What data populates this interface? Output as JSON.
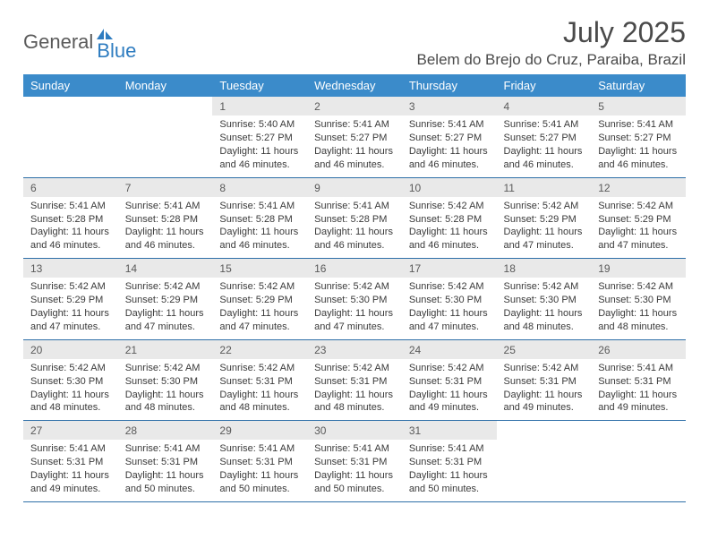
{
  "logo": {
    "general": "General",
    "blue": "Blue"
  },
  "title": {
    "month": "July 2025",
    "location": "Belem do Brejo do Cruz, Paraiba, Brazil"
  },
  "colors": {
    "headerBg": "#3b8bca",
    "daynumBg": "#e9e9e9",
    "border": "#2e6fa8"
  },
  "weekdays": [
    "Sunday",
    "Monday",
    "Tuesday",
    "Wednesday",
    "Thursday",
    "Friday",
    "Saturday"
  ],
  "weeks": [
    [
      null,
      null,
      {
        "d": "1",
        "sr": "Sunrise: 5:40 AM",
        "ss": "Sunset: 5:27 PM",
        "dl1": "Daylight: 11 hours",
        "dl2": "and 46 minutes."
      },
      {
        "d": "2",
        "sr": "Sunrise: 5:41 AM",
        "ss": "Sunset: 5:27 PM",
        "dl1": "Daylight: 11 hours",
        "dl2": "and 46 minutes."
      },
      {
        "d": "3",
        "sr": "Sunrise: 5:41 AM",
        "ss": "Sunset: 5:27 PM",
        "dl1": "Daylight: 11 hours",
        "dl2": "and 46 minutes."
      },
      {
        "d": "4",
        "sr": "Sunrise: 5:41 AM",
        "ss": "Sunset: 5:27 PM",
        "dl1": "Daylight: 11 hours",
        "dl2": "and 46 minutes."
      },
      {
        "d": "5",
        "sr": "Sunrise: 5:41 AM",
        "ss": "Sunset: 5:27 PM",
        "dl1": "Daylight: 11 hours",
        "dl2": "and 46 minutes."
      }
    ],
    [
      {
        "d": "6",
        "sr": "Sunrise: 5:41 AM",
        "ss": "Sunset: 5:28 PM",
        "dl1": "Daylight: 11 hours",
        "dl2": "and 46 minutes."
      },
      {
        "d": "7",
        "sr": "Sunrise: 5:41 AM",
        "ss": "Sunset: 5:28 PM",
        "dl1": "Daylight: 11 hours",
        "dl2": "and 46 minutes."
      },
      {
        "d": "8",
        "sr": "Sunrise: 5:41 AM",
        "ss": "Sunset: 5:28 PM",
        "dl1": "Daylight: 11 hours",
        "dl2": "and 46 minutes."
      },
      {
        "d": "9",
        "sr": "Sunrise: 5:41 AM",
        "ss": "Sunset: 5:28 PM",
        "dl1": "Daylight: 11 hours",
        "dl2": "and 46 minutes."
      },
      {
        "d": "10",
        "sr": "Sunrise: 5:42 AM",
        "ss": "Sunset: 5:28 PM",
        "dl1": "Daylight: 11 hours",
        "dl2": "and 46 minutes."
      },
      {
        "d": "11",
        "sr": "Sunrise: 5:42 AM",
        "ss": "Sunset: 5:29 PM",
        "dl1": "Daylight: 11 hours",
        "dl2": "and 47 minutes."
      },
      {
        "d": "12",
        "sr": "Sunrise: 5:42 AM",
        "ss": "Sunset: 5:29 PM",
        "dl1": "Daylight: 11 hours",
        "dl2": "and 47 minutes."
      }
    ],
    [
      {
        "d": "13",
        "sr": "Sunrise: 5:42 AM",
        "ss": "Sunset: 5:29 PM",
        "dl1": "Daylight: 11 hours",
        "dl2": "and 47 minutes."
      },
      {
        "d": "14",
        "sr": "Sunrise: 5:42 AM",
        "ss": "Sunset: 5:29 PM",
        "dl1": "Daylight: 11 hours",
        "dl2": "and 47 minutes."
      },
      {
        "d": "15",
        "sr": "Sunrise: 5:42 AM",
        "ss": "Sunset: 5:29 PM",
        "dl1": "Daylight: 11 hours",
        "dl2": "and 47 minutes."
      },
      {
        "d": "16",
        "sr": "Sunrise: 5:42 AM",
        "ss": "Sunset: 5:30 PM",
        "dl1": "Daylight: 11 hours",
        "dl2": "and 47 minutes."
      },
      {
        "d": "17",
        "sr": "Sunrise: 5:42 AM",
        "ss": "Sunset: 5:30 PM",
        "dl1": "Daylight: 11 hours",
        "dl2": "and 47 minutes."
      },
      {
        "d": "18",
        "sr": "Sunrise: 5:42 AM",
        "ss": "Sunset: 5:30 PM",
        "dl1": "Daylight: 11 hours",
        "dl2": "and 48 minutes."
      },
      {
        "d": "19",
        "sr": "Sunrise: 5:42 AM",
        "ss": "Sunset: 5:30 PM",
        "dl1": "Daylight: 11 hours",
        "dl2": "and 48 minutes."
      }
    ],
    [
      {
        "d": "20",
        "sr": "Sunrise: 5:42 AM",
        "ss": "Sunset: 5:30 PM",
        "dl1": "Daylight: 11 hours",
        "dl2": "and 48 minutes."
      },
      {
        "d": "21",
        "sr": "Sunrise: 5:42 AM",
        "ss": "Sunset: 5:30 PM",
        "dl1": "Daylight: 11 hours",
        "dl2": "and 48 minutes."
      },
      {
        "d": "22",
        "sr": "Sunrise: 5:42 AM",
        "ss": "Sunset: 5:31 PM",
        "dl1": "Daylight: 11 hours",
        "dl2": "and 48 minutes."
      },
      {
        "d": "23",
        "sr": "Sunrise: 5:42 AM",
        "ss": "Sunset: 5:31 PM",
        "dl1": "Daylight: 11 hours",
        "dl2": "and 48 minutes."
      },
      {
        "d": "24",
        "sr": "Sunrise: 5:42 AM",
        "ss": "Sunset: 5:31 PM",
        "dl1": "Daylight: 11 hours",
        "dl2": "and 49 minutes."
      },
      {
        "d": "25",
        "sr": "Sunrise: 5:42 AM",
        "ss": "Sunset: 5:31 PM",
        "dl1": "Daylight: 11 hours",
        "dl2": "and 49 minutes."
      },
      {
        "d": "26",
        "sr": "Sunrise: 5:41 AM",
        "ss": "Sunset: 5:31 PM",
        "dl1": "Daylight: 11 hours",
        "dl2": "and 49 minutes."
      }
    ],
    [
      {
        "d": "27",
        "sr": "Sunrise: 5:41 AM",
        "ss": "Sunset: 5:31 PM",
        "dl1": "Daylight: 11 hours",
        "dl2": "and 49 minutes."
      },
      {
        "d": "28",
        "sr": "Sunrise: 5:41 AM",
        "ss": "Sunset: 5:31 PM",
        "dl1": "Daylight: 11 hours",
        "dl2": "and 50 minutes."
      },
      {
        "d": "29",
        "sr": "Sunrise: 5:41 AM",
        "ss": "Sunset: 5:31 PM",
        "dl1": "Daylight: 11 hours",
        "dl2": "and 50 minutes."
      },
      {
        "d": "30",
        "sr": "Sunrise: 5:41 AM",
        "ss": "Sunset: 5:31 PM",
        "dl1": "Daylight: 11 hours",
        "dl2": "and 50 minutes."
      },
      {
        "d": "31",
        "sr": "Sunrise: 5:41 AM",
        "ss": "Sunset: 5:31 PM",
        "dl1": "Daylight: 11 hours",
        "dl2": "and 50 minutes."
      },
      null,
      null
    ]
  ]
}
